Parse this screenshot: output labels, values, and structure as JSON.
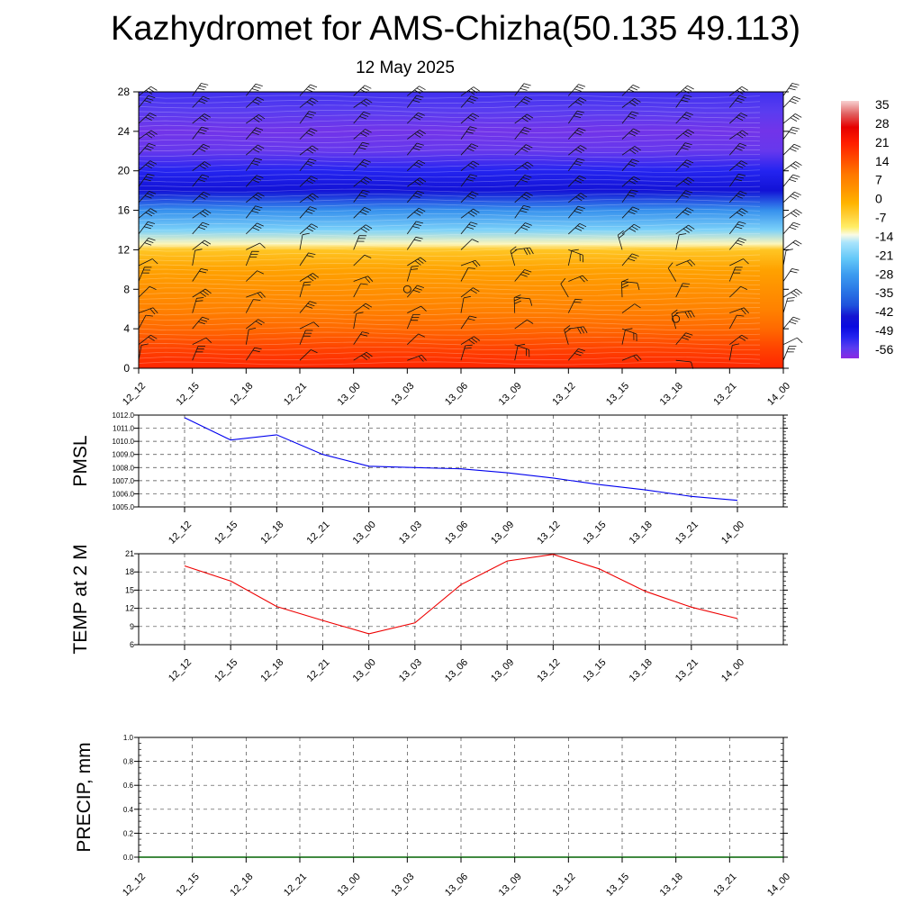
{
  "title": "Kazhydromet for AMS-Chizha(50.135 49.113)",
  "date": "12 May 2025",
  "time_labels": [
    "12_12",
    "12_15",
    "12_18",
    "12_21",
    "13_00",
    "13_03",
    "13_06",
    "13_09",
    "13_12",
    "13_15",
    "13_18",
    "13_21",
    "14_00"
  ],
  "colors": {
    "pmsl": "#0000ee",
    "temp": "#ee0000",
    "precip": "#006400"
  },
  "chart_data": [
    {
      "type": "heatmap",
      "xlabel": "",
      "ylabel": "",
      "x": [
        "12_12",
        "12_15",
        "12_18",
        "12_21",
        "13_00",
        "13_03",
        "13_06",
        "13_09",
        "13_12",
        "13_15",
        "13_18",
        "13_21",
        "14_00"
      ],
      "y_ticks": [
        0,
        4,
        8,
        12,
        16,
        20,
        24,
        28
      ],
      "ylim": [
        0,
        28
      ],
      "colorbar": {
        "labels": [
          35,
          28,
          21,
          14,
          7,
          0,
          -7,
          -14,
          -21,
          -28,
          -35,
          -42,
          -49,
          -56
        ],
        "range": [
          -60,
          38
        ]
      },
      "temperature_profile": [
        {
          "level": 0,
          "value": 21
        },
        {
          "level": 2,
          "value": 17
        },
        {
          "level": 4,
          "value": 12
        },
        {
          "level": 6,
          "value": 8
        },
        {
          "level": 8,
          "value": 5
        },
        {
          "level": 10,
          "value": 2
        },
        {
          "level": 12,
          "value": -4
        },
        {
          "level": 12.6,
          "value": -12
        },
        {
          "level": 14,
          "value": -20
        },
        {
          "level": 16,
          "value": -30
        },
        {
          "level": 18,
          "value": -45
        },
        {
          "level": 20,
          "value": -52
        },
        {
          "level": 22,
          "value": -57
        },
        {
          "level": 24,
          "value": -58
        },
        {
          "level": 26,
          "value": -56
        },
        {
          "level": 28,
          "value": -54
        }
      ],
      "wind_barbs": "shown"
    },
    {
      "type": "line",
      "ylabel": "PMSL",
      "x": [
        "12_12",
        "12_15",
        "12_18",
        "12_21",
        "13_00",
        "13_03",
        "13_06",
        "13_09",
        "13_12",
        "13_15",
        "13_18",
        "13_21",
        "14_00"
      ],
      "series": [
        {
          "values": [
            1011.8,
            1010.1,
            1010.5,
            1009.0,
            1008.1,
            1008.0,
            1007.9,
            1007.6,
            1007.2,
            1006.7,
            1006.3,
            1005.8,
            1005.5
          ]
        }
      ],
      "ylim": [
        1005.0,
        1012.0
      ],
      "y_ticks": [
        "1005.0",
        "1006.0",
        "1007.0",
        "1008.0",
        "1009.0",
        "1010.0",
        "1011.0",
        "1012.0"
      ]
    },
    {
      "type": "line",
      "ylabel": "TEMP at 2 M",
      "x": [
        "12_12",
        "12_15",
        "12_18",
        "12_21",
        "13_00",
        "13_03",
        "13_06",
        "13_09",
        "13_12",
        "13_15",
        "13_18",
        "13_21",
        "14_00"
      ],
      "series": [
        {
          "values": [
            19.0,
            16.5,
            12.3,
            10.0,
            7.8,
            9.6,
            15.9,
            19.8,
            20.9,
            18.5,
            14.8,
            12.2,
            10.3
          ]
        }
      ],
      "ylim": [
        6,
        21
      ],
      "y_ticks": [
        "6",
        "9",
        "12",
        "15",
        "18",
        "21"
      ]
    },
    {
      "type": "line",
      "ylabel": "PRECIP, mm",
      "x": [
        "12_12",
        "12_15",
        "12_18",
        "12_21",
        "13_00",
        "13_03",
        "13_06",
        "13_09",
        "13_12",
        "13_15",
        "13_18",
        "13_21",
        "14_00"
      ],
      "series": [
        {
          "values": [
            0,
            0,
            0,
            0,
            0,
            0,
            0,
            0,
            0,
            0,
            0,
            0,
            0
          ]
        }
      ],
      "ylim": [
        0.0,
        1.0
      ],
      "y_ticks": [
        "0.0",
        "0.2",
        "0.4",
        "0.6",
        "0.8",
        "1.0"
      ]
    }
  ]
}
